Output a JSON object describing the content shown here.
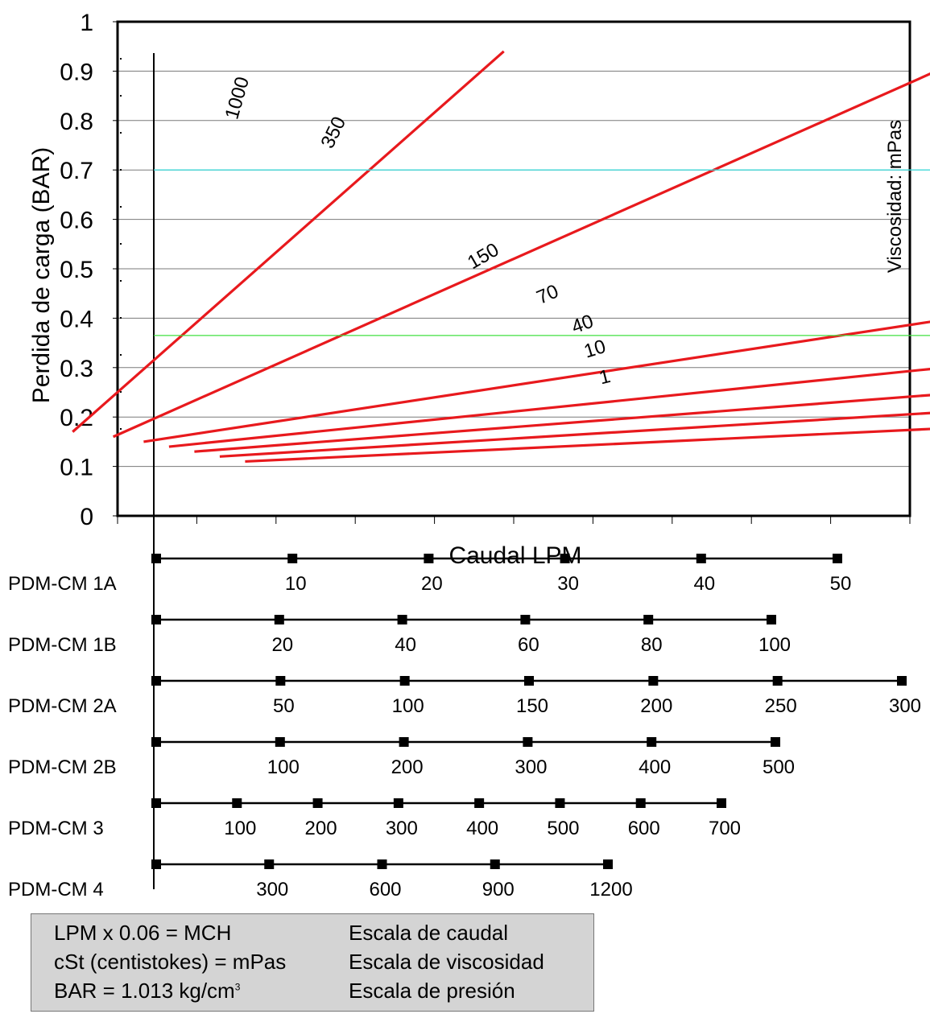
{
  "chart_data": {
    "type": "line",
    "xlabel": "Caudal LPM",
    "ylabel": "Perdida de carga (BAR)",
    "legend_title": "Viscosidad: mPas",
    "xlim": [
      0,
      55
    ],
    "ylim": [
      0,
      1
    ],
    "y_ticks": [
      "0",
      "0.1",
      "0.2",
      "0.3",
      "0.4",
      "0.5",
      "0.6",
      "0.7",
      "0.8",
      "0.9",
      "1"
    ],
    "grid": true,
    "series": [
      {
        "name": "1000",
        "points": [
          [
            1.4,
            0.17
          ],
          [
            9.9,
            0.94
          ]
        ]
      },
      {
        "name": "350",
        "points": [
          [
            2.2,
            0.16
          ],
          [
            19.3,
            0.94
          ]
        ]
      },
      {
        "name": "150",
        "points": [
          [
            2.8,
            0.15
          ],
          [
            52.0,
            0.92
          ]
        ]
      },
      {
        "name": "70",
        "points": [
          [
            3.3,
            0.14
          ],
          [
            52.0,
            0.65
          ]
        ]
      },
      {
        "name": "40",
        "points": [
          [
            3.8,
            0.13
          ],
          [
            52.0,
            0.51
          ]
        ]
      },
      {
        "name": "10",
        "points": [
          [
            4.3,
            0.12
          ],
          [
            52.0,
            0.42
          ]
        ]
      },
      {
        "name": "1",
        "points": [
          [
            4.8,
            0.11
          ],
          [
            52.0,
            0.34
          ]
        ]
      }
    ],
    "guides": [
      {
        "name": "green",
        "color": "#40e040",
        "x": 23.3,
        "y": 0.365
      },
      {
        "name": "cyan",
        "color": "#40d8d8",
        "x": 35.7,
        "y": 0.7
      }
    ],
    "scales": [
      {
        "name": "PDM-CM 1A",
        "ticks": [
          "10",
          "20",
          "30",
          "40",
          "50"
        ],
        "max": 50
      },
      {
        "name": "PDM-CM 1B",
        "ticks": [
          "20",
          "40",
          "60",
          "80",
          "100"
        ],
        "max": 100
      },
      {
        "name": "PDM-CM 2A",
        "ticks": [
          "50",
          "100",
          "150",
          "200",
          "250",
          "300"
        ],
        "max": 300
      },
      {
        "name": "PDM-CM 2B",
        "ticks": [
          "100",
          "200",
          "300",
          "400",
          "500"
        ],
        "max": 500
      },
      {
        "name": "PDM-CM 3",
        "ticks": [
          "100",
          "200",
          "300",
          "400",
          "500",
          "600",
          "700"
        ],
        "max": 700
      },
      {
        "name": "PDM-CM 4",
        "ticks": [
          "300",
          "600",
          "900",
          "1200"
        ],
        "max": 1200
      }
    ],
    "colors": {
      "curve": "#e8191d",
      "grid": "#7a7a7a"
    }
  },
  "notes": [
    {
      "left": "LPM x 0.06 = MCH",
      "right": "Escala de caudal"
    },
    {
      "left": "cSt (centistokes) = mPas",
      "right": "Escala de viscosidad"
    },
    {
      "left": "BAR = 1.013 kg/cm",
      "sup": "3",
      "right": "Escala de presión"
    }
  ]
}
